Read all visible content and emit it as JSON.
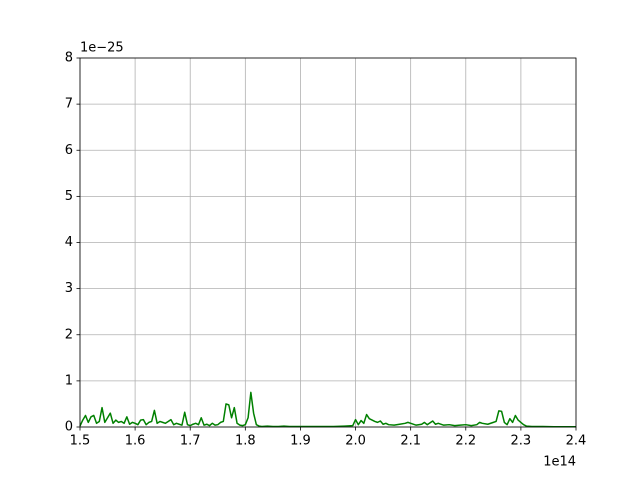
{
  "chart_data": {
    "type": "line",
    "x_offset_label": "1e14",
    "y_offset_label": "1e−25",
    "x": [
      1.5,
      1.505,
      1.51,
      1.515,
      1.52,
      1.525,
      1.53,
      1.535,
      1.54,
      1.545,
      1.55,
      1.555,
      1.56,
      1.565,
      1.57,
      1.575,
      1.58,
      1.585,
      1.59,
      1.595,
      1.6,
      1.605,
      1.61,
      1.615,
      1.62,
      1.625,
      1.63,
      1.635,
      1.64,
      1.645,
      1.65,
      1.655,
      1.66,
      1.665,
      1.67,
      1.675,
      1.68,
      1.685,
      1.69,
      1.695,
      1.7,
      1.705,
      1.71,
      1.715,
      1.72,
      1.725,
      1.73,
      1.735,
      1.74,
      1.745,
      1.75,
      1.755,
      1.76,
      1.765,
      1.77,
      1.775,
      1.78,
      1.785,
      1.79,
      1.795,
      1.8,
      1.805,
      1.81,
      1.815,
      1.82,
      1.825,
      1.83,
      1.84,
      1.85,
      1.86,
      1.87,
      1.88,
      1.9,
      1.92,
      1.94,
      1.96,
      1.98,
      1.995,
      2.0,
      2.005,
      2.01,
      2.015,
      2.02,
      2.025,
      2.03,
      2.035,
      2.04,
      2.045,
      2.05,
      2.055,
      2.06,
      2.07,
      2.08,
      2.09,
      2.095,
      2.1,
      2.11,
      2.12,
      2.125,
      2.13,
      2.14,
      2.145,
      2.15,
      2.16,
      2.17,
      2.18,
      2.19,
      2.2,
      2.21,
      2.22,
      2.225,
      2.23,
      2.24,
      2.25,
      2.255,
      2.26,
      2.265,
      2.27,
      2.275,
      2.28,
      2.285,
      2.29,
      2.295,
      2.3,
      2.305,
      2.31,
      2.32,
      2.34,
      2.36,
      2.38,
      2.4
    ],
    "series": [
      {
        "color": "#008000",
        "values": [
          0.02,
          0.15,
          0.25,
          0.1,
          0.22,
          0.25,
          0.08,
          0.12,
          0.42,
          0.1,
          0.2,
          0.3,
          0.08,
          0.15,
          0.1,
          0.12,
          0.08,
          0.22,
          0.06,
          0.1,
          0.08,
          0.05,
          0.15,
          0.16,
          0.05,
          0.1,
          0.12,
          0.36,
          0.08,
          0.12,
          0.1,
          0.08,
          0.12,
          0.16,
          0.05,
          0.08,
          0.06,
          0.04,
          0.32,
          0.05,
          0.03,
          0.06,
          0.08,
          0.05,
          0.2,
          0.04,
          0.06,
          0.03,
          0.08,
          0.04,
          0.05,
          0.1,
          0.12,
          0.5,
          0.48,
          0.2,
          0.42,
          0.08,
          0.04,
          0.03,
          0.05,
          0.2,
          0.75,
          0.3,
          0.05,
          0.02,
          0.01,
          0.02,
          0.01,
          0.01,
          0.02,
          0.01,
          0.01,
          0.01,
          0.01,
          0.01,
          0.02,
          0.03,
          0.16,
          0.05,
          0.14,
          0.08,
          0.27,
          0.18,
          0.15,
          0.12,
          0.1,
          0.13,
          0.06,
          0.08,
          0.05,
          0.04,
          0.06,
          0.08,
          0.1,
          0.08,
          0.04,
          0.06,
          0.1,
          0.05,
          0.13,
          0.06,
          0.08,
          0.04,
          0.05,
          0.03,
          0.04,
          0.05,
          0.03,
          0.05,
          0.1,
          0.08,
          0.06,
          0.1,
          0.12,
          0.35,
          0.34,
          0.1,
          0.05,
          0.18,
          0.1,
          0.25,
          0.15,
          0.1,
          0.05,
          0.02,
          0.01,
          0.01,
          0.005,
          0.005,
          0.005
        ]
      }
    ],
    "xlim": [
      1.5,
      2.4
    ],
    "xticks": [
      1.5,
      1.6,
      1.7,
      1.8,
      1.9,
      {
        "value": 2,
        "label": "2.0"
      },
      2.1,
      2.2,
      2.3,
      2.4
    ],
    "ylim": [
      0,
      8
    ],
    "yticks": [
      0,
      1,
      2,
      3,
      4,
      5,
      6,
      7,
      8
    ],
    "grid": true
  }
}
